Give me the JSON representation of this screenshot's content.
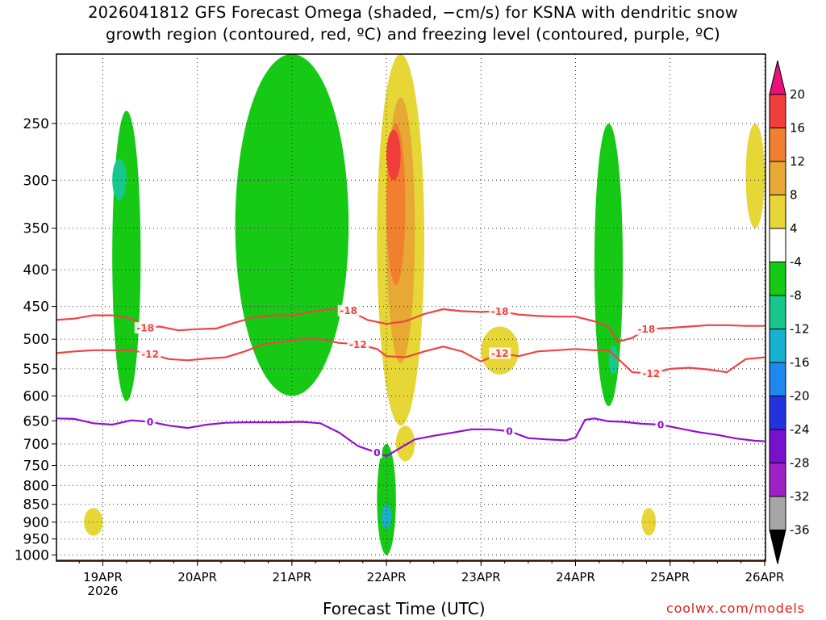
{
  "title": {
    "line1": "2026041812 GFS Forecast Omega (shaded, −cm/s) for KSNA with dendritic snow",
    "line2": "growth region (contoured, red, ºC) and freezing level (contoured, purple, ºC)"
  },
  "xlabel": "Forecast Time (UTC)",
  "credit": "coolwx.com/models",
  "chart_data": {
    "type": "heatmap",
    "title": "2026041812 GFS Forecast Omega (shaded, −cm/s) for KSNA with dendritic snow growth region (contoured, red, ºC) and freezing level (contoured, purple, ºC)",
    "xlabel": "Forecast Time (UTC)",
    "ylabel": "",
    "y_scale": "pressure (log)",
    "ylim": [
      1020,
      200
    ],
    "xlim": [
      -0.5,
      7
    ],
    "x_ticks": [
      {
        "value": 0,
        "label": "19APR",
        "sublabel": "2026"
      },
      {
        "value": 1,
        "label": "20APR"
      },
      {
        "value": 2,
        "label": "21APR"
      },
      {
        "value": 3,
        "label": "22APR"
      },
      {
        "value": 4,
        "label": "23APR"
      },
      {
        "value": 5,
        "label": "24APR"
      },
      {
        "value": 6,
        "label": "25APR"
      },
      {
        "value": 7,
        "label": "26APR"
      }
    ],
    "y_ticks": [
      250,
      300,
      350,
      400,
      450,
      500,
      550,
      600,
      650,
      700,
      750,
      800,
      850,
      900,
      950,
      1000
    ],
    "grid": true,
    "colorbar": {
      "levels": [
        20,
        16,
        12,
        8,
        4,
        -4,
        -8,
        -12,
        -16,
        -20,
        -24,
        -28,
        -32,
        -36
      ],
      "colors": [
        "#e8107a",
        "#f23d3d",
        "#f08030",
        "#e7a834",
        "#e6d636",
        "#ffffff",
        "#15c915",
        "#18c78c",
        "#16b0d0",
        "#1e88ee",
        "#2233dd",
        "#7711cc",
        "#a020c8",
        "#a6a6a6",
        "#000000"
      ]
    },
    "contours": [
      {
        "name": "dendritic snow growth -18C",
        "label": "-18",
        "color": "#ee4444",
        "x": [
          -0.5,
          -0.3,
          -0.1,
          0.1,
          0.3,
          0.45,
          0.6,
          0.8,
          1.0,
          1.2,
          1.4,
          1.6,
          1.8,
          2.0,
          2.2,
          2.4,
          2.6,
          2.8,
          3.0,
          3.2,
          3.4,
          3.6,
          3.8,
          4.0,
          4.2,
          4.4,
          4.6,
          4.8,
          5.0,
          5.2,
          5.35,
          5.45,
          5.6,
          5.75,
          6.0,
          6.2,
          6.4,
          6.6,
          6.8,
          7.0
        ],
        "y": [
          470,
          468,
          463,
          463,
          468,
          482,
          480,
          486,
          484,
          483,
          474,
          466,
          463,
          463,
          458,
          454,
          456,
          470,
          476,
          472,
          461,
          454,
          457,
          458,
          457,
          462,
          464,
          465,
          465,
          472,
          480,
          504,
          498,
          484,
          482,
          480,
          478,
          478,
          479,
          479
        ]
      },
      {
        "name": "dendritic snow growth -12C",
        "label": "-12",
        "color": "#ee4444",
        "x": [
          -0.5,
          -0.3,
          -0.1,
          0.1,
          0.3,
          0.5,
          0.7,
          0.9,
          1.1,
          1.3,
          1.5,
          1.7,
          1.9,
          2.1,
          2.3,
          2.5,
          2.7,
          2.9,
          3.0,
          3.2,
          3.4,
          3.6,
          3.8,
          4.0,
          4.2,
          4.4,
          4.6,
          4.8,
          5.0,
          5.2,
          5.35,
          5.5,
          5.6,
          5.8,
          6.0,
          6.2,
          6.4,
          6.6,
          6.8,
          7.0
        ],
        "y": [
          523,
          520,
          518,
          518,
          518,
          524,
          533,
          535,
          532,
          530,
          520,
          508,
          504,
          500,
          500,
          506,
          508,
          516,
          528,
          530,
          520,
          512,
          520,
          537,
          523,
          528,
          520,
          518,
          516,
          518,
          518,
          540,
          556,
          558,
          550,
          548,
          551,
          556,
          533,
          530
        ]
      },
      {
        "name": "freezing level 0C",
        "label": "0",
        "color": "#9010d0",
        "x": [
          -0.5,
          -0.3,
          -0.1,
          0.1,
          0.3,
          0.5,
          0.7,
          0.9,
          1.1,
          1.3,
          1.5,
          1.7,
          1.9,
          2.1,
          2.3,
          2.5,
          2.7,
          2.9,
          3.0,
          3.1,
          3.3,
          3.5,
          3.7,
          3.9,
          4.1,
          4.3,
          4.5,
          4.7,
          4.9,
          5.0,
          5.1,
          5.2,
          5.35,
          5.5,
          5.7,
          5.9,
          6.1,
          6.3,
          6.5,
          6.7,
          6.9,
          7.0
        ],
        "y": [
          645,
          646,
          655,
          658,
          649,
          652,
          660,
          665,
          658,
          654,
          653,
          653,
          653,
          652,
          655,
          675,
          705,
          720,
          728,
          715,
          690,
          682,
          675,
          668,
          668,
          672,
          687,
          690,
          692,
          686,
          648,
          645,
          651,
          652,
          656,
          658,
          666,
          674,
          680,
          688,
          693,
          694
        ]
      }
    ],
    "omega_regions": [
      {
        "x": [
          2.9,
          3.4
        ],
        "p": [
          200,
          660
        ],
        "value": 6
      },
      {
        "x": [
          3.0,
          3.3
        ],
        "p": [
          230,
          540
        ],
        "value": 10
      },
      {
        "x": [
          3.0,
          3.2
        ],
        "p": [
          250,
          420
        ],
        "value": 15
      },
      {
        "x": [
          3.0,
          3.15
        ],
        "p": [
          255,
          300
        ],
        "value": 19
      },
      {
        "x": [
          3.1,
          3.3
        ],
        "p": [
          660,
          740
        ],
        "value": 6
      },
      {
        "x": [
          4.0,
          4.4
        ],
        "p": [
          480,
          560
        ],
        "value": 6
      },
      {
        "x": [
          1.4,
          2.6
        ],
        "p": [
          200,
          600
        ],
        "value": -6
      },
      {
        "x": [
          0.1,
          0.4
        ],
        "p": [
          240,
          610
        ],
        "value": -6
      },
      {
        "x": [
          0.1,
          0.25
        ],
        "p": [
          280,
          320
        ],
        "value": -10
      },
      {
        "x": [
          5.2,
          5.5
        ],
        "p": [
          250,
          620
        ],
        "value": -6
      },
      {
        "x": [
          5.35,
          5.45
        ],
        "p": [
          510,
          560
        ],
        "value": -10
      },
      {
        "x": [
          2.9,
          3.1
        ],
        "p": [
          700,
          1000
        ],
        "value": -6
      },
      {
        "x": [
          2.95,
          3.05
        ],
        "p": [
          850,
          920
        ],
        "value": -14
      },
      {
        "x": [
          -0.2,
          0.0
        ],
        "p": [
          860,
          940
        ],
        "value": 6
      },
      {
        "x": [
          5.7,
          5.85
        ],
        "p": [
          860,
          940
        ],
        "value": 6
      },
      {
        "x": [
          6.8,
          7.0
        ],
        "p": [
          250,
          350
        ],
        "value": 6
      }
    ],
    "terrain": {
      "surface_pressure": 1015,
      "color": "#a0522d"
    }
  }
}
